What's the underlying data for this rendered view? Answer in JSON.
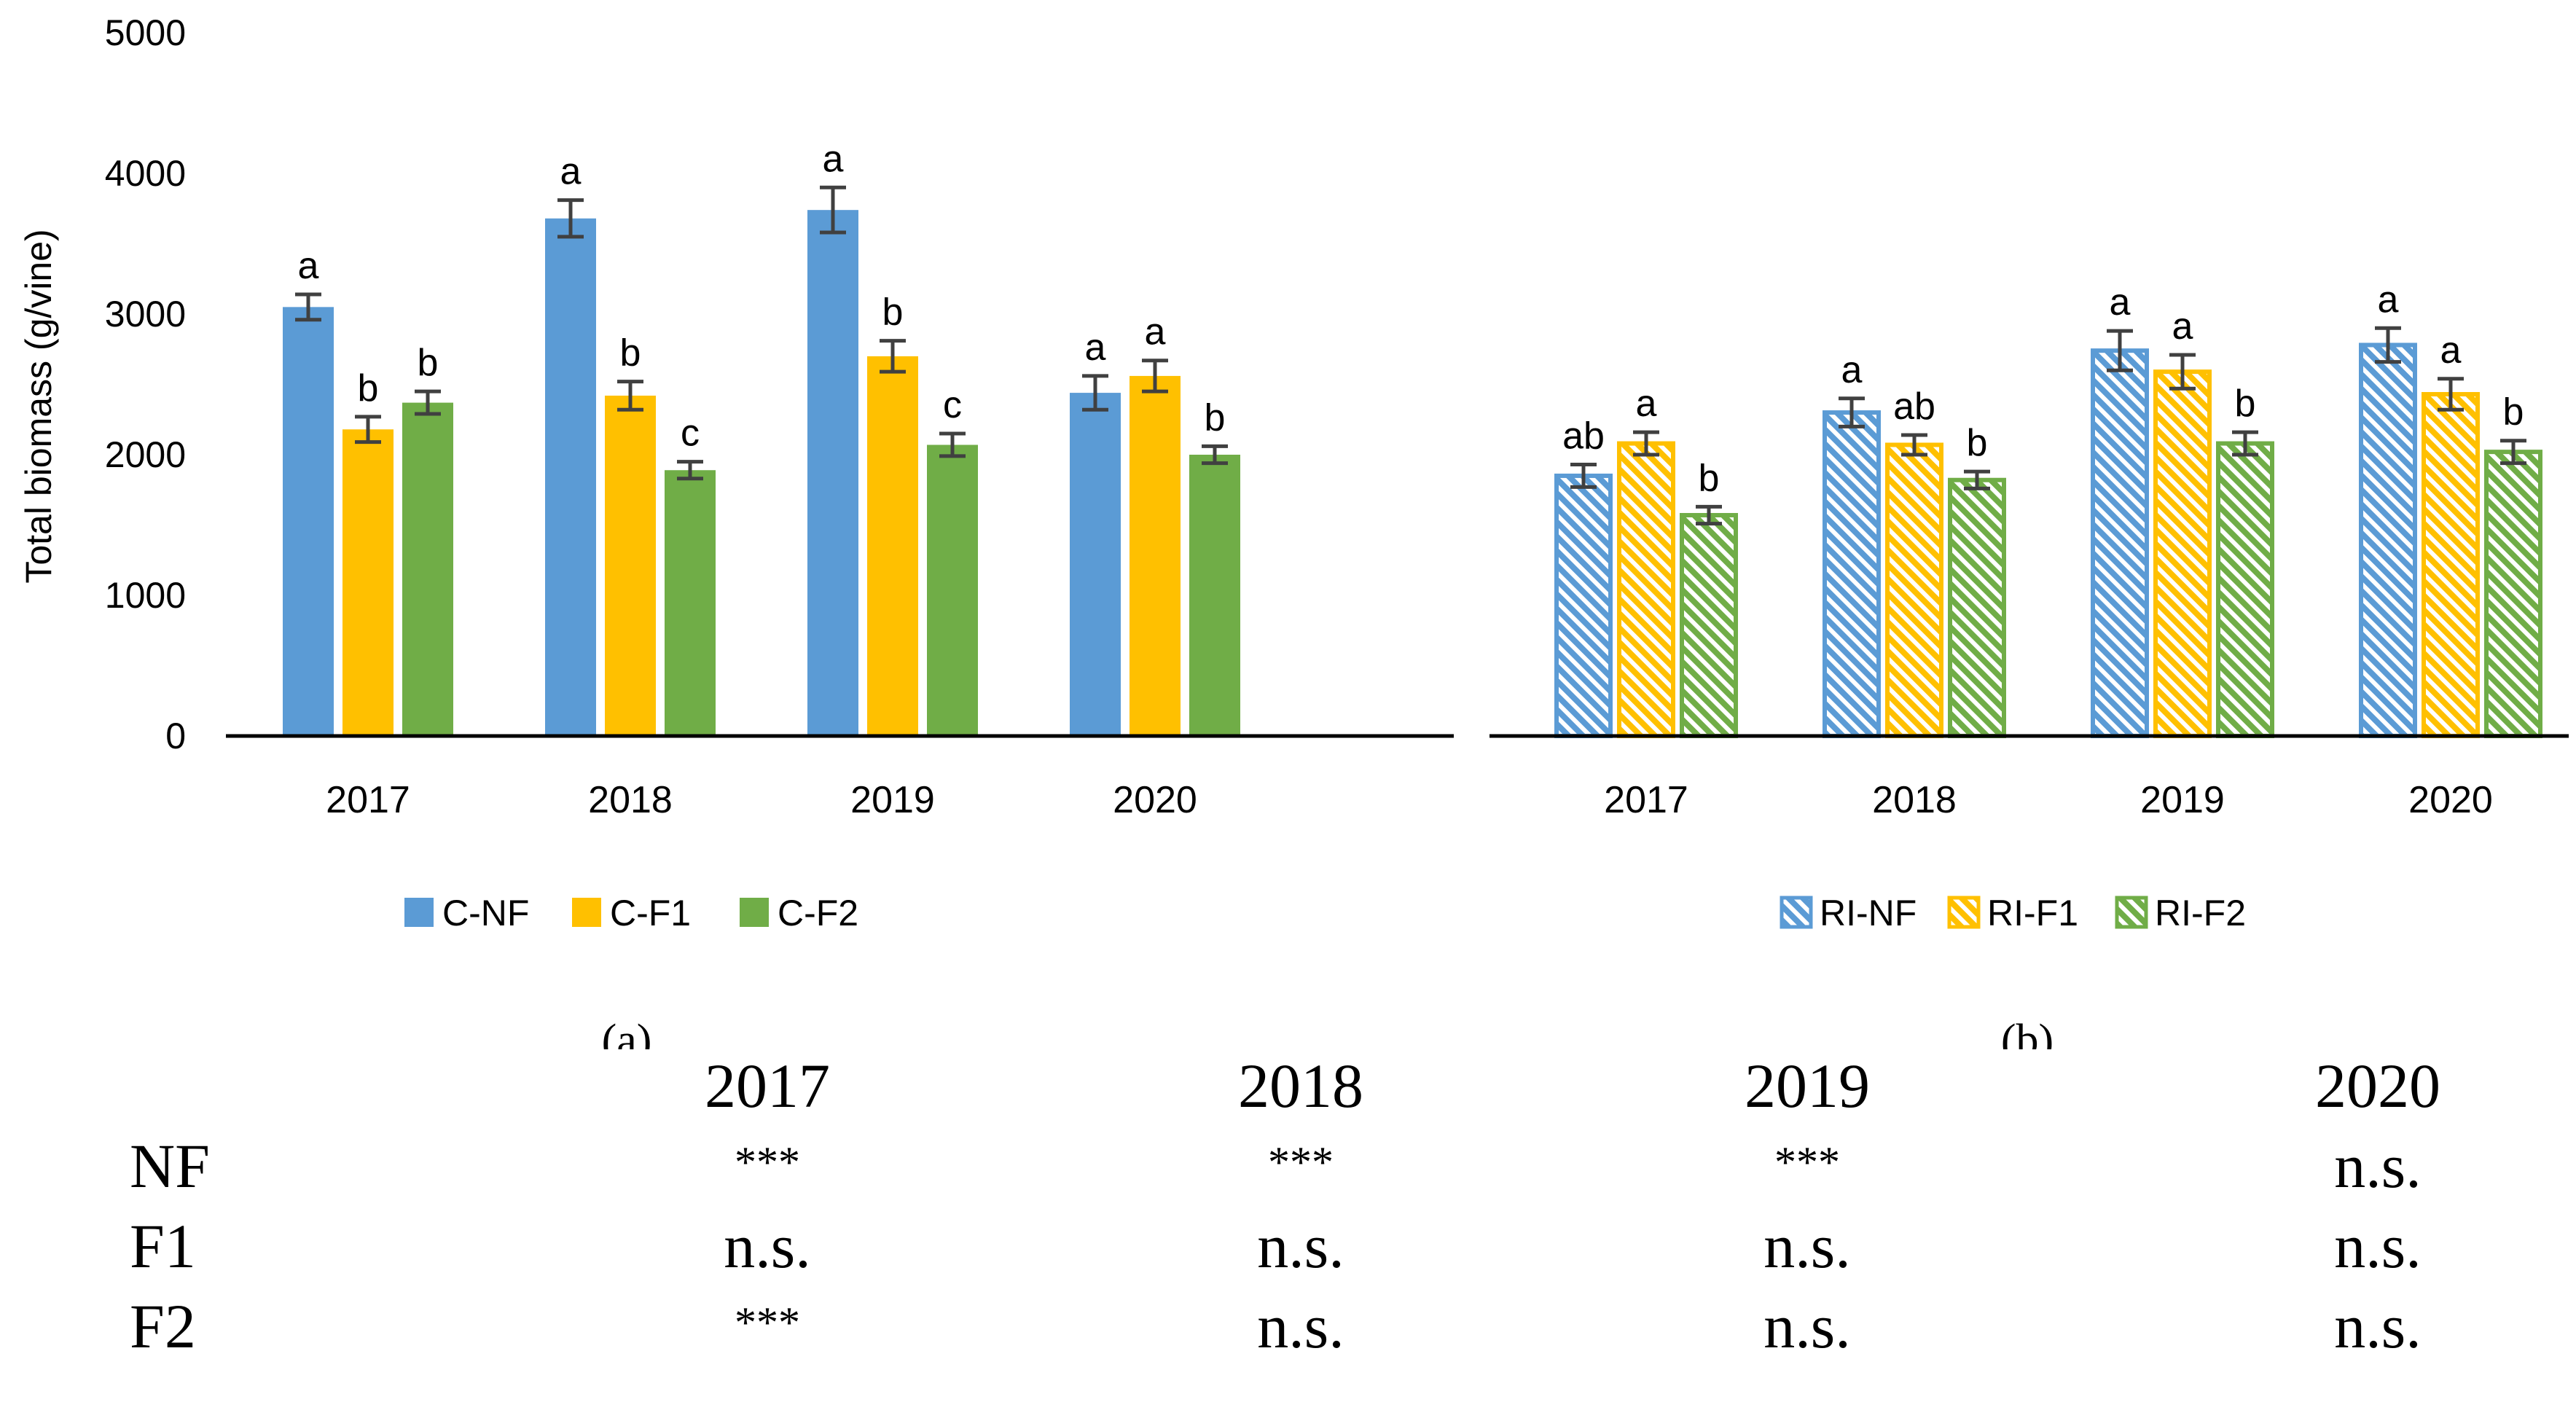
{
  "chart_data": [
    {
      "type": "bar",
      "panel_label": "a",
      "categories": [
        "2017",
        "2018",
        "2019",
        "2020"
      ],
      "ylabel": "Total biomass (g/vine)",
      "ylim": [
        0,
        5000
      ],
      "yticks": [
        "0",
        "1000",
        "2000",
        "3000",
        "4000",
        "5000"
      ],
      "legend_position": "bottom",
      "series": [
        {
          "name": "C-NF",
          "color": "#5b9bd5",
          "pattern": "solid",
          "values": [
            3050,
            3680,
            3740,
            2440
          ],
          "errors": [
            90,
            130,
            160,
            120
          ],
          "letters": [
            "a",
            "a",
            "a",
            "a"
          ]
        },
        {
          "name": "C-F1",
          "color": "#ffc000",
          "pattern": "solid",
          "values": [
            2180,
            2420,
            2700,
            2560
          ],
          "errors": [
            90,
            100,
            110,
            110
          ],
          "letters": [
            "b",
            "b",
            "b",
            "a"
          ]
        },
        {
          "name": "C-F2",
          "color": "#70ad47",
          "pattern": "solid",
          "values": [
            2370,
            1890,
            2070,
            2000
          ],
          "errors": [
            80,
            60,
            80,
            60
          ],
          "letters": [
            "b",
            "c",
            "c",
            "b"
          ]
        }
      ]
    },
    {
      "type": "bar",
      "panel_label": "b",
      "categories": [
        "2017",
        "2018",
        "2019",
        "2020"
      ],
      "ylabel": "",
      "ylim": [
        0,
        5000
      ],
      "legend_position": "bottom",
      "series": [
        {
          "name": "RI-NF",
          "color": "#5b9bd5",
          "pattern": "diagonal-hatch",
          "values": [
            1850,
            2300,
            2740,
            2780
          ],
          "errors": [
            80,
            100,
            140,
            120
          ],
          "letters": [
            "ab",
            "a",
            "a",
            "a"
          ]
        },
        {
          "name": "RI-F1",
          "color": "#ffc000",
          "pattern": "diagonal-hatch",
          "values": [
            2080,
            2070,
            2590,
            2430
          ],
          "errors": [
            80,
            70,
            120,
            110
          ],
          "letters": [
            "a",
            "ab",
            "a",
            "a"
          ]
        },
        {
          "name": "RI-F2",
          "color": "#70ad47",
          "pattern": "diagonal-hatch",
          "values": [
            1570,
            1820,
            2080,
            2020
          ],
          "errors": [
            60,
            60,
            80,
            80
          ],
          "letters": [
            "b",
            "b",
            "b",
            "b"
          ]
        }
      ]
    }
  ],
  "panel_labels": {
    "a": "(a)",
    "b": "(b)"
  },
  "significance_table": {
    "columns": [
      "2017",
      "2018",
      "2019",
      "2020"
    ],
    "rows": [
      {
        "label": "NF",
        "cells": [
          "***",
          "***",
          "***",
          "n.s."
        ]
      },
      {
        "label": "F1",
        "cells": [
          "n.s.",
          "n.s.",
          "n.s.",
          "n.s."
        ]
      },
      {
        "label": "F2",
        "cells": [
          "***",
          "n.s.",
          "n.s.",
          "n.s."
        ]
      }
    ]
  }
}
